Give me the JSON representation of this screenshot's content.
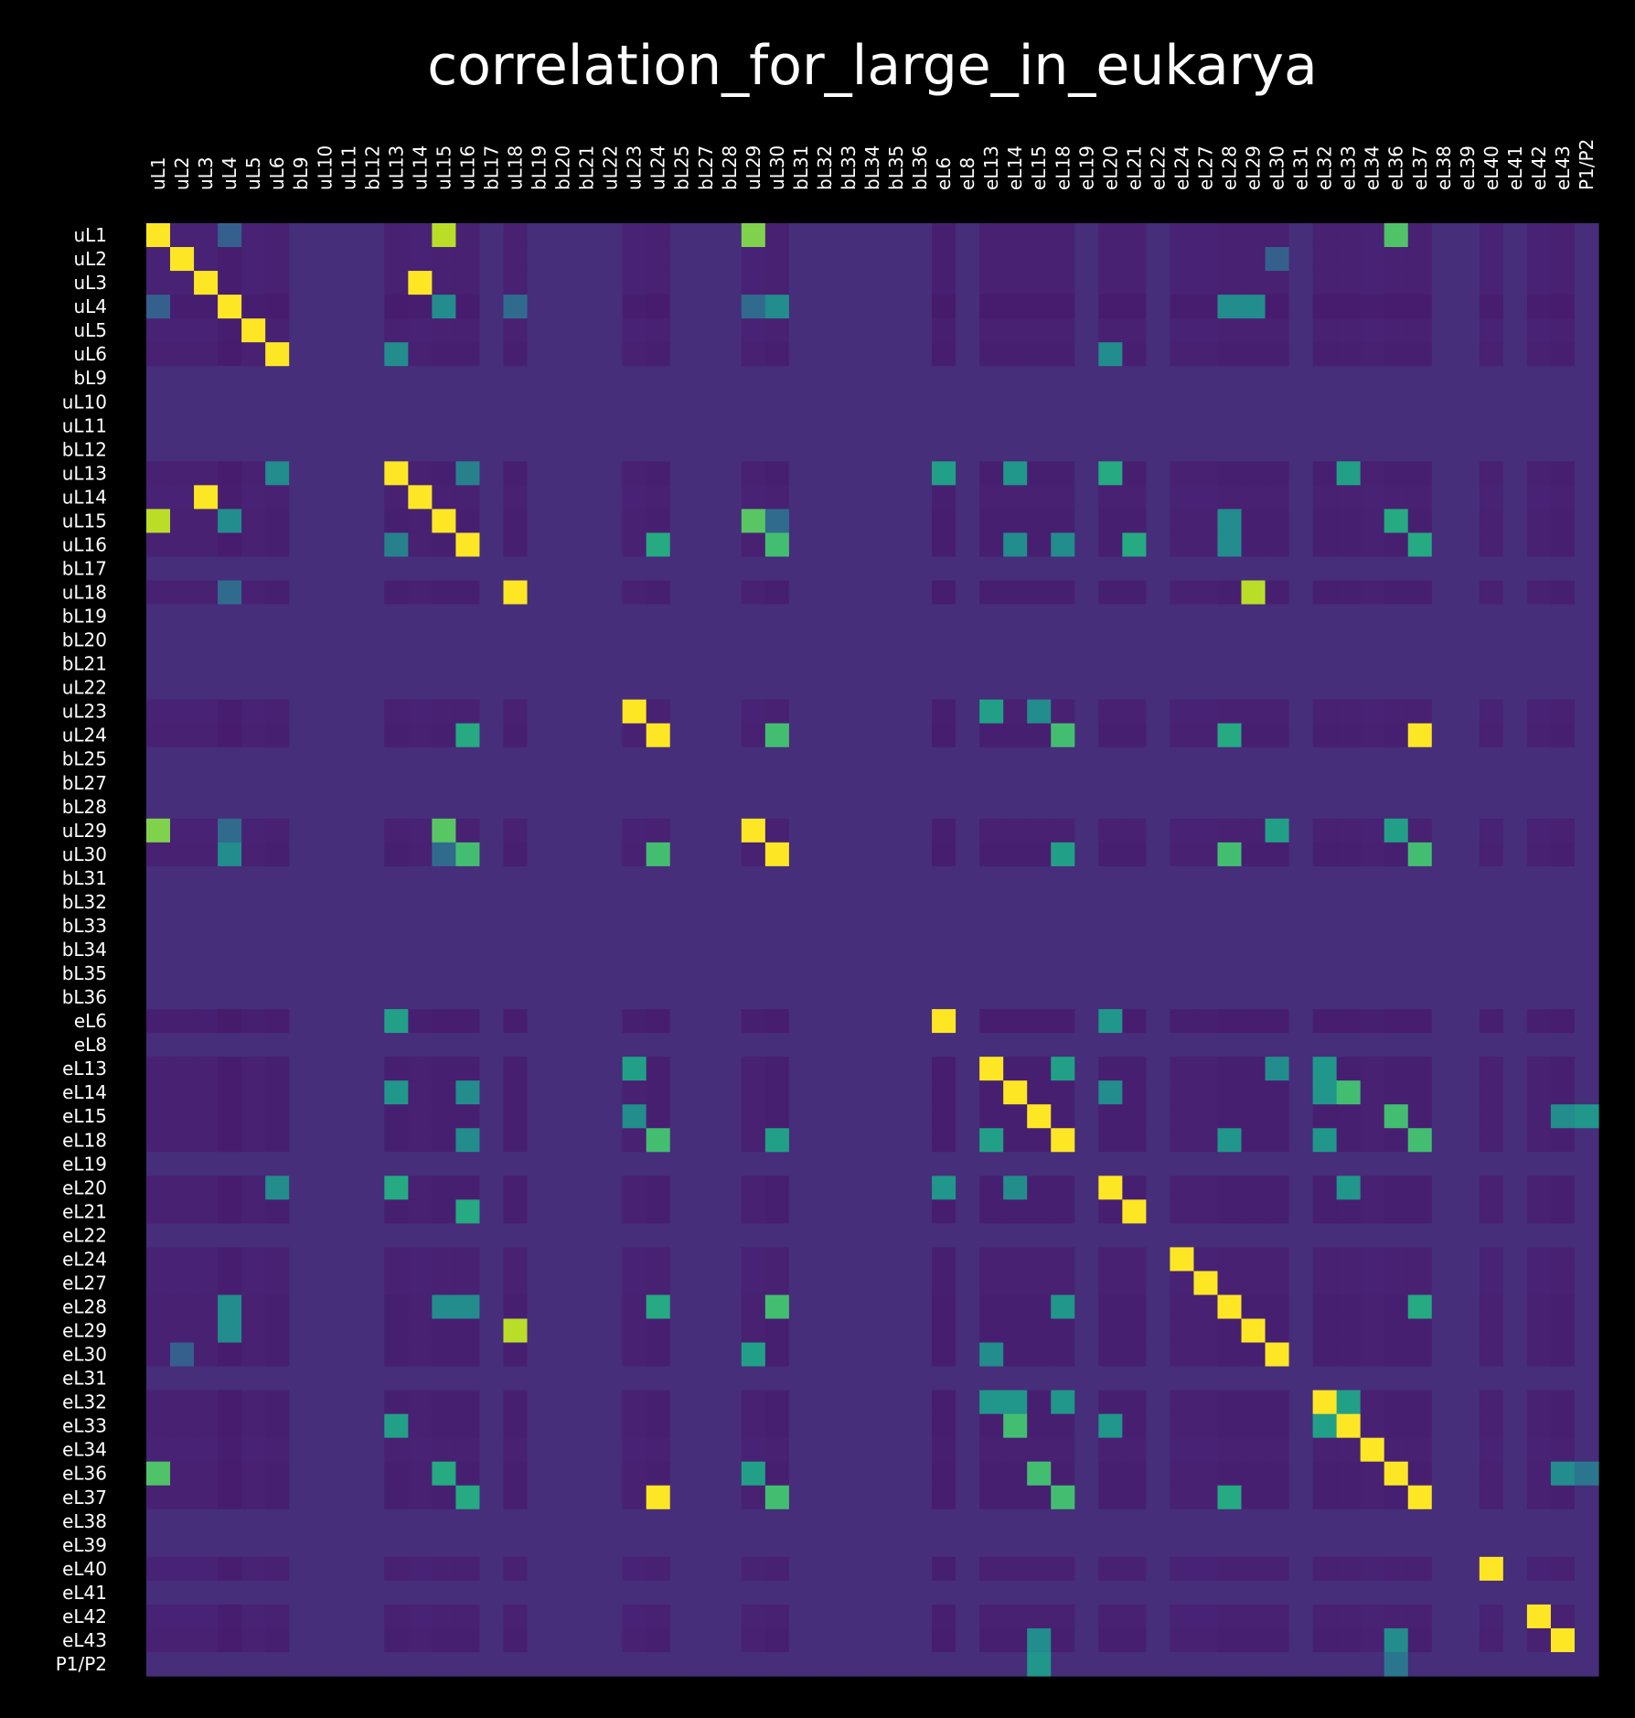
{
  "chart_data": {
    "type": "heatmap",
    "title": "correlation_for_large_in_eukarya",
    "xlabel": "",
    "ylabel": "",
    "colormap": "viridis",
    "colorbar": false,
    "value_range": [
      -0.15,
      1.0
    ],
    "background": "#000000",
    "text_color": "#ffffff",
    "labels": [
      "uL1",
      "uL2",
      "uL3",
      "uL4",
      "uL5",
      "uL6",
      "bL9",
      "uL10",
      "uL11",
      "bL12",
      "uL13",
      "uL14",
      "uL15",
      "uL16",
      "bL17",
      "uL18",
      "bL19",
      "bL20",
      "bL21",
      "uL22",
      "uL23",
      "uL24",
      "bL25",
      "bL27",
      "bL28",
      "uL29",
      "uL30",
      "bL31",
      "bL32",
      "bL33",
      "bL34",
      "bL35",
      "bL36",
      "eL6",
      "eL8",
      "eL13",
      "eL14",
      "eL15",
      "eL18",
      "eL19",
      "eL20",
      "eL21",
      "eL22",
      "eL24",
      "eL27",
      "eL28",
      "eL29",
      "eL30",
      "eL31",
      "eL32",
      "eL33",
      "eL34",
      "eL36",
      "eL37",
      "eL38",
      "eL39",
      "eL40",
      "eL41",
      "eL42",
      "eL43",
      "P1/P2"
    ],
    "baseline_value": 0.0,
    "row_defaults": {
      "uL1": -0.04,
      "uL2": -0.04,
      "uL3": -0.04,
      "uL4": -0.07,
      "uL5": -0.04,
      "uL6": -0.05,
      "uL13": -0.05,
      "uL14": -0.04,
      "uL15": -0.05,
      "uL16": -0.05,
      "uL18": -0.05,
      "uL23": -0.04,
      "uL24": -0.05,
      "uL29": -0.04,
      "uL30": -0.05,
      "eL6": -0.06,
      "eL13": -0.05,
      "eL14": -0.05,
      "eL15": -0.05,
      "eL18": -0.05,
      "eL20": -0.05,
      "eL21": -0.05,
      "eL24": -0.04,
      "eL27": -0.04,
      "eL28": -0.05,
      "eL29": -0.05,
      "eL30": -0.05,
      "eL32": -0.05,
      "eL33": -0.05,
      "eL34": -0.04,
      "eL36": -0.05,
      "eL37": -0.05,
      "eL40": -0.04,
      "eL42": -0.04,
      "eL43": -0.05
    },
    "notable_cells": [
      [
        "uL1",
        "uL1",
        1.0
      ],
      [
        "uL2",
        "uL2",
        1.0
      ],
      [
        "uL3",
        "uL3",
        1.0
      ],
      [
        "uL4",
        "uL4",
        1.0
      ],
      [
        "uL5",
        "uL5",
        1.0
      ],
      [
        "uL6",
        "uL6",
        1.0
      ],
      [
        "uL13",
        "uL13",
        1.0
      ],
      [
        "uL14",
        "uL14",
        1.0
      ],
      [
        "uL15",
        "uL15",
        1.0
      ],
      [
        "uL16",
        "uL16",
        1.0
      ],
      [
        "uL18",
        "uL18",
        1.0
      ],
      [
        "uL23",
        "uL23",
        1.0
      ],
      [
        "uL24",
        "uL24",
        1.0
      ],
      [
        "uL29",
        "uL29",
        1.0
      ],
      [
        "uL30",
        "uL30",
        1.0
      ],
      [
        "eL6",
        "eL6",
        1.0
      ],
      [
        "eL13",
        "eL13",
        1.0
      ],
      [
        "eL14",
        "eL14",
        1.0
      ],
      [
        "eL15",
        "eL15",
        1.0
      ],
      [
        "eL18",
        "eL18",
        1.0
      ],
      [
        "eL20",
        "eL20",
        1.0
      ],
      [
        "eL21",
        "eL21",
        1.0
      ],
      [
        "eL24",
        "eL24",
        1.0
      ],
      [
        "eL27",
        "eL27",
        1.0
      ],
      [
        "eL28",
        "eL28",
        1.0
      ],
      [
        "eL29",
        "eL29",
        1.0
      ],
      [
        "eL30",
        "eL30",
        1.0
      ],
      [
        "eL32",
        "eL32",
        1.0
      ],
      [
        "eL33",
        "eL33",
        1.0
      ],
      [
        "eL34",
        "eL34",
        1.0
      ],
      [
        "eL36",
        "eL36",
        1.0
      ],
      [
        "eL37",
        "eL37",
        1.0
      ],
      [
        "eL40",
        "eL40",
        1.0
      ],
      [
        "eL42",
        "eL42",
        1.0
      ],
      [
        "eL43",
        "eL43",
        1.0
      ],
      [
        "uL3",
        "uL14",
        1.0
      ],
      [
        "uL14",
        "uL3",
        1.0
      ],
      [
        "uL1",
        "uL15",
        0.88
      ],
      [
        "uL15",
        "uL1",
        0.88
      ],
      [
        "uL1",
        "uL29",
        0.78
      ],
      [
        "uL29",
        "uL1",
        0.78
      ],
      [
        "uL1",
        "eL36",
        0.68
      ],
      [
        "eL36",
        "uL1",
        0.68
      ],
      [
        "uL2",
        "eL30",
        0.2
      ],
      [
        "eL30",
        "uL2",
        0.2
      ],
      [
        "uL4",
        "uL15",
        0.4
      ],
      [
        "uL15",
        "uL4",
        0.4
      ],
      [
        "uL4",
        "uL1",
        0.2
      ],
      [
        "uL1",
        "uL4",
        0.2
      ],
      [
        "uL4",
        "uL29",
        0.25
      ],
      [
        "uL29",
        "uL4",
        0.25
      ],
      [
        "uL4",
        "uL30",
        0.4
      ],
      [
        "uL30",
        "uL4",
        0.4
      ],
      [
        "uL4",
        "uL18",
        0.25
      ],
      [
        "uL18",
        "uL4",
        0.25
      ],
      [
        "uL4",
        "eL28",
        0.4
      ],
      [
        "eL28",
        "uL4",
        0.4
      ],
      [
        "uL4",
        "eL29",
        0.4
      ],
      [
        "eL29",
        "uL4",
        0.4
      ],
      [
        "uL6",
        "uL13",
        0.4
      ],
      [
        "uL13",
        "uL6",
        0.4
      ],
      [
        "uL6",
        "eL20",
        0.4
      ],
      [
        "eL20",
        "uL6",
        0.4
      ],
      [
        "uL13",
        "uL16",
        0.35
      ],
      [
        "uL16",
        "uL13",
        0.35
      ],
      [
        "uL13",
        "eL6",
        0.5
      ],
      [
        "eL6",
        "uL13",
        0.5
      ],
      [
        "uL13",
        "eL14",
        0.45
      ],
      [
        "eL14",
        "uL13",
        0.45
      ],
      [
        "uL13",
        "eL20",
        0.55
      ],
      [
        "eL20",
        "uL13",
        0.55
      ],
      [
        "uL13",
        "eL33",
        0.5
      ],
      [
        "eL33",
        "uL13",
        0.5
      ],
      [
        "uL15",
        "uL29",
        0.7
      ],
      [
        "uL29",
        "uL15",
        0.7
      ],
      [
        "uL15",
        "uL30",
        0.25
      ],
      [
        "uL30",
        "uL15",
        0.25
      ],
      [
        "uL15",
        "eL28",
        0.4
      ],
      [
        "eL28",
        "uL15",
        0.4
      ],
      [
        "uL15",
        "eL36",
        0.55
      ],
      [
        "eL36",
        "uL15",
        0.55
      ],
      [
        "uL16",
        "uL24",
        0.55
      ],
      [
        "uL24",
        "uL16",
        0.55
      ],
      [
        "uL16",
        "uL30",
        0.65
      ],
      [
        "uL30",
        "uL16",
        0.65
      ],
      [
        "uL16",
        "eL14",
        0.4
      ],
      [
        "eL14",
        "uL16",
        0.4
      ],
      [
        "uL16",
        "eL18",
        0.4
      ],
      [
        "eL18",
        "uL16",
        0.4
      ],
      [
        "uL16",
        "eL21",
        0.55
      ],
      [
        "eL21",
        "uL16",
        0.55
      ],
      [
        "uL16",
        "eL37",
        0.55
      ],
      [
        "eL37",
        "uL16",
        0.55
      ],
      [
        "uL16",
        "eL28",
        0.4
      ],
      [
        "eL28",
        "uL16",
        0.4
      ],
      [
        "uL18",
        "eL29",
        0.88
      ],
      [
        "eL29",
        "uL18",
        0.88
      ],
      [
        "uL23",
        "eL13",
        0.5
      ],
      [
        "eL13",
        "uL23",
        0.5
      ],
      [
        "uL23",
        "eL15",
        0.4
      ],
      [
        "eL15",
        "uL23",
        0.4
      ],
      [
        "uL24",
        "uL30",
        0.65
      ],
      [
        "uL30",
        "uL24",
        0.65
      ],
      [
        "uL24",
        "eL18",
        0.65
      ],
      [
        "eL18",
        "uL24",
        0.65
      ],
      [
        "uL24",
        "eL28",
        0.55
      ],
      [
        "eL28",
        "uL24",
        0.55
      ],
      [
        "uL24",
        "eL37",
        1.0
      ],
      [
        "eL37",
        "uL24",
        1.0
      ],
      [
        "uL29",
        "eL30",
        0.5
      ],
      [
        "eL30",
        "uL29",
        0.5
      ],
      [
        "uL29",
        "eL36",
        0.5
      ],
      [
        "eL36",
        "uL29",
        0.5
      ],
      [
        "uL30",
        "eL18",
        0.5
      ],
      [
        "eL18",
        "uL30",
        0.5
      ],
      [
        "uL30",
        "eL28",
        0.65
      ],
      [
        "eL28",
        "uL30",
        0.65
      ],
      [
        "uL30",
        "eL37",
        0.65
      ],
      [
        "eL37",
        "uL30",
        0.65
      ],
      [
        "eL6",
        "eL20",
        0.45
      ],
      [
        "eL20",
        "eL6",
        0.45
      ],
      [
        "eL13",
        "eL18",
        0.5
      ],
      [
        "eL18",
        "eL13",
        0.5
      ],
      [
        "eL13",
        "eL30",
        0.4
      ],
      [
        "eL30",
        "eL13",
        0.4
      ],
      [
        "eL13",
        "eL32",
        0.45
      ],
      [
        "eL32",
        "eL13",
        0.45
      ],
      [
        "eL14",
        "eL33",
        0.65
      ],
      [
        "eL33",
        "eL14",
        0.65
      ],
      [
        "eL14",
        "eL20",
        0.4
      ],
      [
        "eL20",
        "eL14",
        0.4
      ],
      [
        "eL14",
        "eL32",
        0.45
      ],
      [
        "eL32",
        "eL14",
        0.45
      ],
      [
        "eL15",
        "eL36",
        0.65
      ],
      [
        "eL36",
        "eL15",
        0.65
      ],
      [
        "eL15",
        "P1/P2",
        0.45
      ],
      [
        "P1/P2",
        "eL15",
        0.45
      ],
      [
        "eL18",
        "eL37",
        0.65
      ],
      [
        "eL37",
        "eL18",
        0.65
      ],
      [
        "eL18",
        "eL32",
        0.45
      ],
      [
        "eL32",
        "eL18",
        0.45
      ],
      [
        "eL18",
        "eL28",
        0.45
      ],
      [
        "eL28",
        "eL18",
        0.45
      ],
      [
        "eL20",
        "eL33",
        0.45
      ],
      [
        "eL33",
        "eL20",
        0.45
      ],
      [
        "eL28",
        "eL37",
        0.55
      ],
      [
        "eL37",
        "eL28",
        0.55
      ],
      [
        "eL32",
        "eL33",
        0.5
      ],
      [
        "eL33",
        "eL32",
        0.5
      ],
      [
        "eL36",
        "P1/P2",
        0.3
      ],
      [
        "P1/P2",
        "eL36",
        0.3
      ],
      [
        "eL43",
        "eL15",
        0.4
      ],
      [
        "eL15",
        "eL43",
        0.4
      ],
      [
        "eL43",
        "eL36",
        0.4
      ],
      [
        "eL36",
        "eL43",
        0.4
      ]
    ]
  }
}
